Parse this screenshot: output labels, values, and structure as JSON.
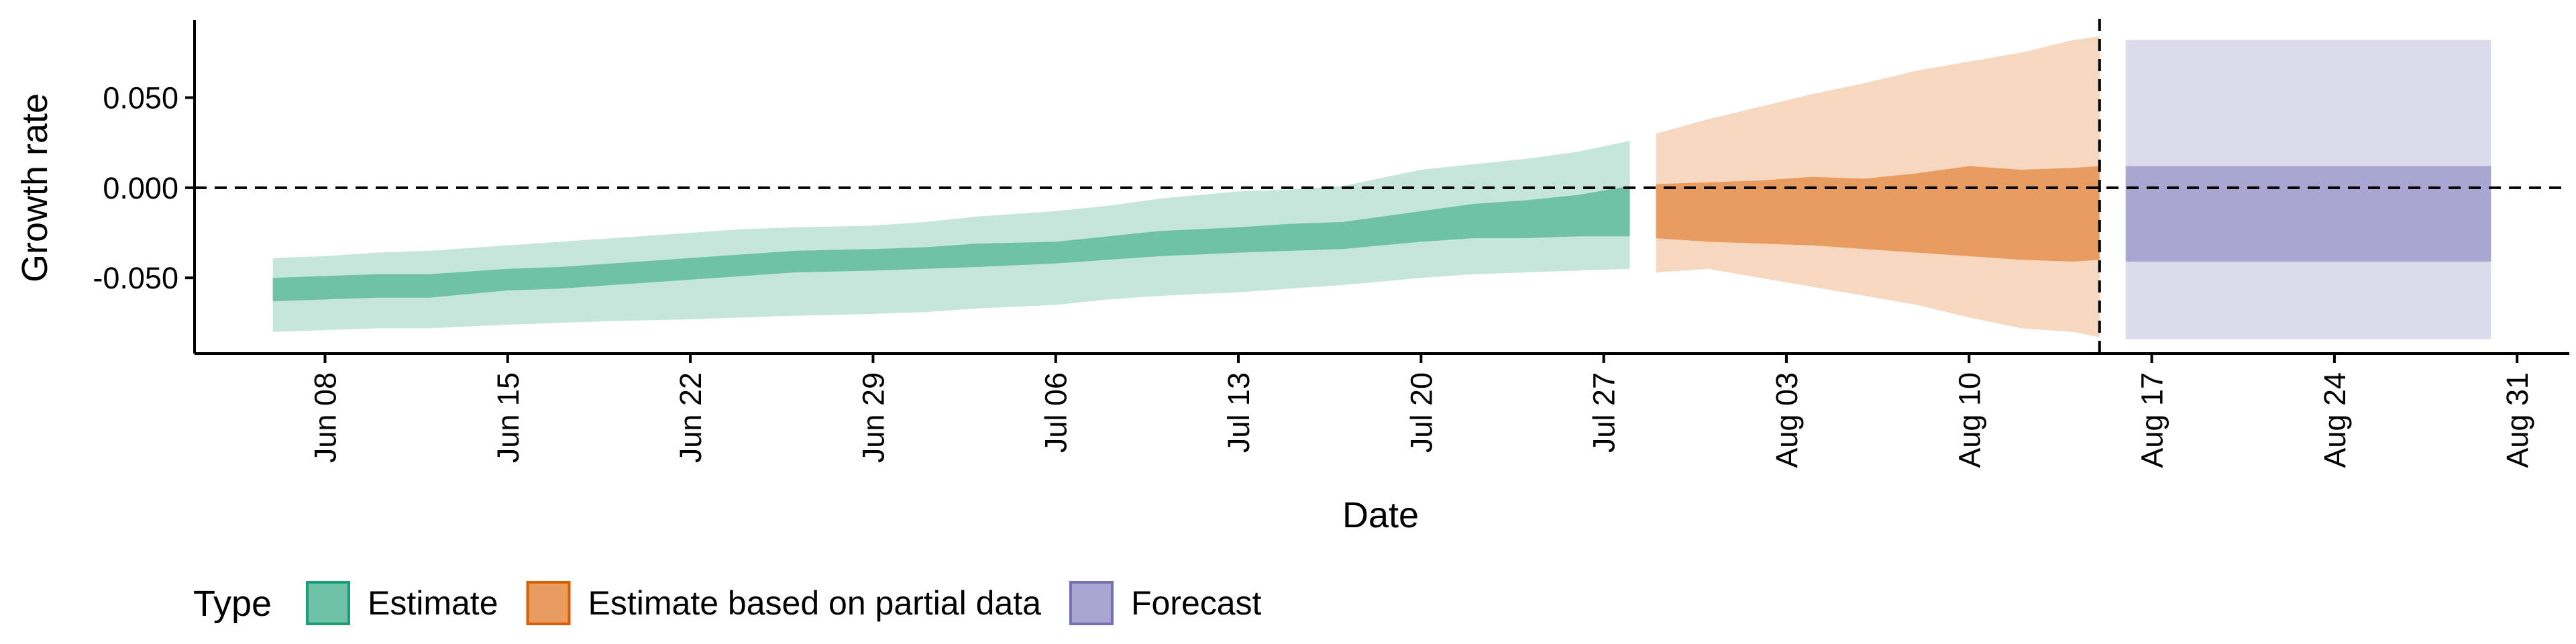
{
  "chart_data": {
    "type": "area",
    "title": "",
    "xlabel": "Date",
    "ylabel": "Growth rate",
    "xlim": [
      "2020-06-03",
      "2020-09-02"
    ],
    "ylim": [
      -0.092,
      0.093
    ],
    "x_ticks": [
      "2020-06-08",
      "2020-06-15",
      "2020-06-22",
      "2020-06-29",
      "2020-07-06",
      "2020-07-13",
      "2020-07-20",
      "2020-07-27",
      "2020-08-03",
      "2020-08-10",
      "2020-08-17",
      "2020-08-24",
      "2020-08-31"
    ],
    "x_tick_labels": [
      "Jun 08",
      "Jun 15",
      "Jun 22",
      "Jun 29",
      "Jul 06",
      "Jul 13",
      "Jul 20",
      "Jul 27",
      "Aug 03",
      "Aug 10",
      "Aug 17",
      "Aug 24",
      "Aug 31"
    ],
    "y_ticks": [
      0.05,
      0.0,
      -0.05
    ],
    "y_tick_labels": [
      "0.050",
      "0.000",
      "-0.050"
    ],
    "reference_lines": {
      "horizontal_y": 0.0,
      "vertical_x": "2020-08-15"
    },
    "grid": false,
    "legend": {
      "title": "Type",
      "placement": "bottom-left",
      "items": [
        "Estimate",
        "Estimate based on partial data",
        "Forecast"
      ]
    },
    "colors": {
      "Estimate": {
        "inner": "#70c2a6",
        "outer": "#c6e6db",
        "swatch": "#70c2a6",
        "border": "#1b9e77"
      },
      "Estimate based on partial data": {
        "inner": "#e89c60",
        "outer": "#f6d7c0",
        "swatch": "#e89c60",
        "border": "#d95f02"
      },
      "Forecast": {
        "inner": "#a9a6d2",
        "outer": "#dcdbec",
        "swatch": "#a9a6d2",
        "border": "#7570b3"
      }
    },
    "series": [
      {
        "name": "Estimate",
        "x": [
          "2020-06-06",
          "2020-06-08",
          "2020-06-10",
          "2020-06-12",
          "2020-06-15",
          "2020-06-17",
          "2020-06-19",
          "2020-06-22",
          "2020-06-24",
          "2020-06-26",
          "2020-06-29",
          "2020-07-01",
          "2020-07-03",
          "2020-07-06",
          "2020-07-08",
          "2020-07-10",
          "2020-07-13",
          "2020-07-15",
          "2020-07-17",
          "2020-07-20",
          "2020-07-22",
          "2020-07-24",
          "2020-07-26",
          "2020-07-28"
        ],
        "lower_90": [
          -0.08,
          -0.079,
          -0.078,
          -0.078,
          -0.076,
          -0.075,
          -0.074,
          -0.073,
          -0.072,
          -0.071,
          -0.07,
          -0.069,
          -0.067,
          -0.065,
          -0.062,
          -0.06,
          -0.058,
          -0.056,
          -0.054,
          -0.05,
          -0.048,
          -0.047,
          -0.046,
          -0.045
        ],
        "lower_50": [
          -0.063,
          -0.062,
          -0.061,
          -0.061,
          -0.057,
          -0.056,
          -0.054,
          -0.051,
          -0.049,
          -0.047,
          -0.046,
          -0.045,
          -0.044,
          -0.042,
          -0.04,
          -0.038,
          -0.036,
          -0.035,
          -0.034,
          -0.03,
          -0.028,
          -0.028,
          -0.027,
          -0.027
        ],
        "upper_50": [
          -0.05,
          -0.049,
          -0.048,
          -0.048,
          -0.045,
          -0.044,
          -0.042,
          -0.039,
          -0.037,
          -0.035,
          -0.034,
          -0.033,
          -0.031,
          -0.03,
          -0.027,
          -0.024,
          -0.022,
          -0.02,
          -0.019,
          -0.013,
          -0.009,
          -0.007,
          -0.004,
          0.001
        ],
        "upper_90": [
          -0.039,
          -0.038,
          -0.036,
          -0.035,
          -0.032,
          -0.03,
          -0.028,
          -0.025,
          -0.023,
          -0.022,
          -0.021,
          -0.019,
          -0.016,
          -0.013,
          -0.01,
          -0.006,
          -0.002,
          -0.001,
          0.001,
          0.01,
          0.013,
          0.016,
          0.02,
          0.026
        ]
      },
      {
        "name": "Estimate based on partial data",
        "x": [
          "2020-07-29",
          "2020-07-31",
          "2020-08-02",
          "2020-08-04",
          "2020-08-06",
          "2020-08-08",
          "2020-08-10",
          "2020-08-12",
          "2020-08-14",
          "2020-08-15"
        ],
        "lower_90": [
          -0.047,
          -0.045,
          -0.05,
          -0.055,
          -0.06,
          -0.065,
          -0.072,
          -0.078,
          -0.08,
          -0.083
        ],
        "lower_50": [
          -0.028,
          -0.03,
          -0.031,
          -0.032,
          -0.034,
          -0.036,
          -0.038,
          -0.04,
          -0.041,
          -0.04
        ],
        "upper_50": [
          0.002,
          0.003,
          0.004,
          0.006,
          0.005,
          0.008,
          0.012,
          0.01,
          0.011,
          0.012
        ],
        "upper_90": [
          0.03,
          0.038,
          0.045,
          0.052,
          0.058,
          0.065,
          0.07,
          0.075,
          0.082,
          0.084
        ]
      },
      {
        "name": "Forecast",
        "x": [
          "2020-08-16",
          "2020-08-30"
        ],
        "lower_90": [
          -0.084,
          -0.084
        ],
        "lower_50": [
          -0.041,
          -0.041
        ],
        "upper_50": [
          0.012,
          0.012
        ],
        "upper_90": [
          0.082,
          0.082
        ]
      }
    ]
  }
}
